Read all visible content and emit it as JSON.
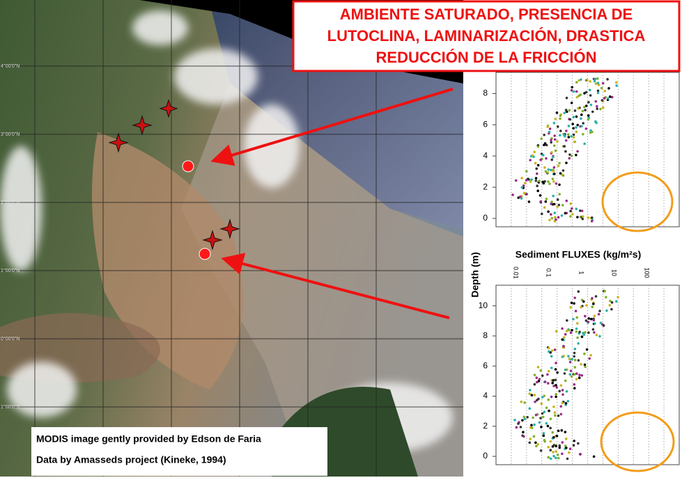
{
  "callout": {
    "lines": [
      "AMBIENTE SATURADO, PRESENCIA DE",
      "LUTOCLINA, LAMINARIZACIÓN, DRASTICA",
      "REDUCCIÓN DE LA FRICCIÓN"
    ]
  },
  "caption": {
    "lines": [
      "MODIS image gently provided by Edson de Faria",
      "Data by Amasseds project (Kineke, 1994)"
    ]
  },
  "map": {
    "lat_labels": [
      "4°00'0\"N",
      "3°00'0\"N",
      "2°00'0\"N",
      "1°00'0\"N",
      "0°00'0\"N",
      "1°00'0\"S"
    ]
  },
  "profile_top": {
    "yticks": [
      0,
      2,
      4,
      6,
      8
    ]
  },
  "profile_bottom": {
    "title": "Sediment FLUXES (kg/m²s)",
    "y_label": "Depth (m)",
    "xticks": [
      "0.01",
      "0.1",
      "1",
      "10",
      "100"
    ],
    "yticks": [
      0,
      2,
      4,
      6,
      8,
      10
    ]
  }
}
